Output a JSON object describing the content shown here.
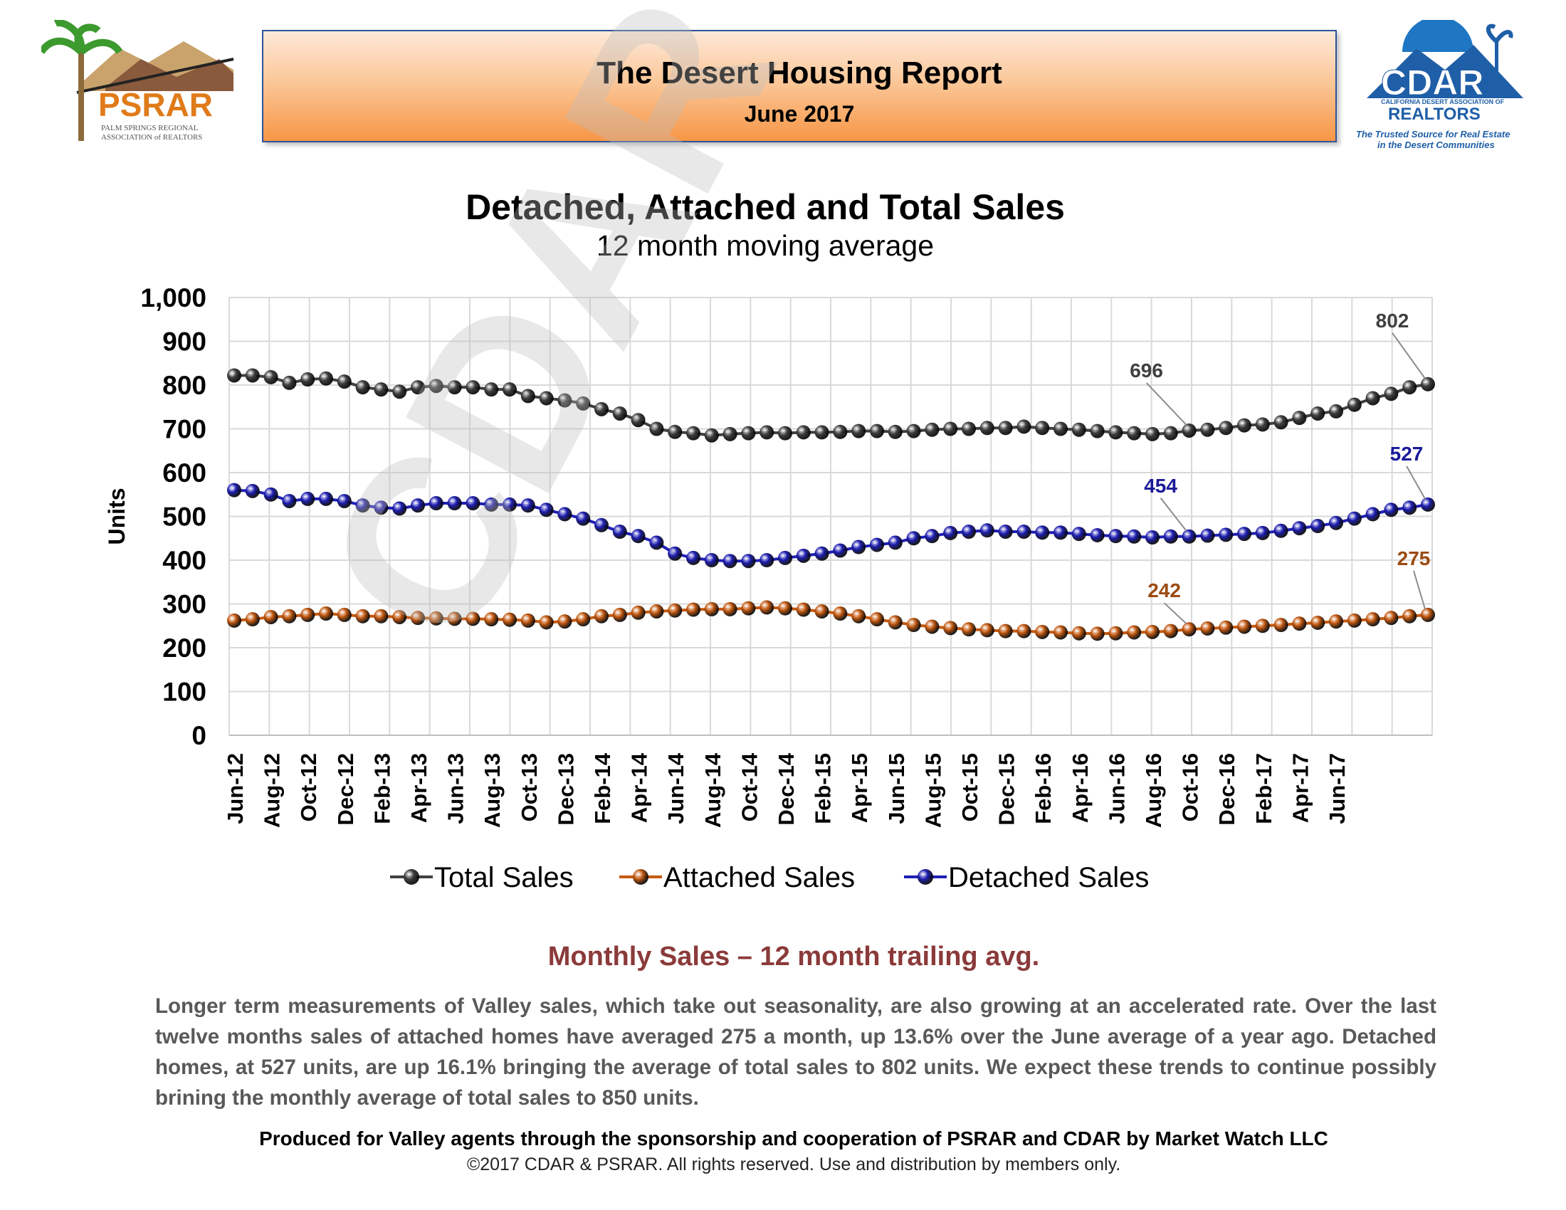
{
  "header": {
    "title": "The Desert Housing Report",
    "date": "June 2017"
  },
  "logos": {
    "left_text": "PSRAR",
    "left_subtitle_1": "PALM SPRINGS REGIONAL",
    "left_subtitle_2": "ASSOCIATION of REALTORS",
    "right_text": "CDAR",
    "right_assoc": "CALIFORNIA DESERT ASSOCIATION OF",
    "right_realtors": "REALTORS",
    "right_tagline_1": "The Trusted Source for Real Estate",
    "right_tagline_2": "in the Desert Communities"
  },
  "watermark": "CDAR & PSRAR",
  "colors": {
    "total": "#404040",
    "attached": "#c55a11",
    "detached": "#1f1fb4",
    "grid": "#d9d9d9",
    "section_title": "#8b3a3a"
  },
  "chart_data": {
    "type": "line",
    "title": "Detached, Attached and Total Sales",
    "subtitle": "12 month moving average",
    "ylabel": "Units",
    "xlabel": "",
    "ylim": [
      0,
      1000
    ],
    "yticks": [
      "0",
      "100",
      "200",
      "300",
      "400",
      "500",
      "600",
      "700",
      "800",
      "900",
      "1,000"
    ],
    "x_tick_labels": [
      "Jun-12",
      "Aug-12",
      "Oct-12",
      "Dec-12",
      "Feb-13",
      "Apr-13",
      "Jun-13",
      "Aug-13",
      "Oct-13",
      "Dec-13",
      "Feb-14",
      "Apr-14",
      "Jun-14",
      "Aug-14",
      "Oct-14",
      "Dec-14",
      "Feb-15",
      "Apr-15",
      "Jun-15",
      "Aug-15",
      "Oct-15",
      "Dec-15",
      "Feb-16",
      "Apr-16",
      "Jun-16",
      "Aug-16",
      "Oct-16",
      "Dec-16",
      "Feb-17",
      "Apr-17",
      "Jun-17"
    ],
    "legend": [
      "Total Sales",
      "Attached Sales",
      "Detached Sales"
    ],
    "series": [
      {
        "name": "Total Sales",
        "values": [
          822,
          822,
          818,
          805,
          813,
          815,
          808,
          795,
          790,
          785,
          795,
          798,
          795,
          795,
          790,
          790,
          775,
          770,
          765,
          758,
          745,
          735,
          720,
          700,
          693,
          690,
          685,
          688,
          690,
          692,
          690,
          692,
          692,
          693,
          695,
          695,
          693,
          695,
          698,
          700,
          700,
          702,
          702,
          705,
          702,
          700,
          698,
          695,
          692,
          690,
          688,
          690,
          696,
          698,
          702,
          708,
          710,
          715,
          725,
          735,
          740,
          755,
          770,
          780,
          795,
          802
        ]
      },
      {
        "name": "Attached Sales",
        "values": [
          262,
          265,
          270,
          272,
          275,
          278,
          275,
          272,
          272,
          270,
          268,
          267,
          266,
          266,
          265,
          264,
          262,
          258,
          260,
          265,
          272,
          275,
          280,
          283,
          285,
          287,
          288,
          288,
          290,
          292,
          290,
          287,
          283,
          278,
          272,
          265,
          258,
          252,
          248,
          245,
          242,
          240,
          238,
          238,
          236,
          235,
          233,
          232,
          233,
          235,
          236,
          238,
          242,
          244,
          246,
          248,
          250,
          252,
          255,
          257,
          260,
          262,
          265,
          268,
          272,
          275
        ]
      },
      {
        "name": "Detached Sales",
        "values": [
          560,
          558,
          550,
          535,
          540,
          540,
          535,
          525,
          520,
          518,
          525,
          530,
          530,
          530,
          527,
          527,
          525,
          515,
          505,
          495,
          480,
          465,
          455,
          440,
          415,
          405,
          400,
          398,
          398,
          400,
          405,
          410,
          415,
          422,
          430,
          435,
          440,
          450,
          455,
          462,
          465,
          468,
          465,
          465,
          463,
          463,
          460,
          457,
          455,
          454,
          452,
          454,
          454,
          456,
          458,
          460,
          462,
          467,
          473,
          478,
          485,
          495,
          505,
          515,
          520,
          527
        ]
      }
    ],
    "callouts": [
      {
        "series": "Total Sales",
        "label": "696"
      },
      {
        "series": "Total Sales",
        "label": "802"
      },
      {
        "series": "Detached Sales",
        "label": "454"
      },
      {
        "series": "Detached Sales",
        "label": "527"
      },
      {
        "series": "Attached Sales",
        "label": "242"
      },
      {
        "series": "Attached Sales",
        "label": "275"
      }
    ]
  },
  "section": {
    "title": "Monthly Sales – 12 month trailing avg."
  },
  "summary": "Longer term measurements of Valley sales, which take out seasonality, are also growing at an accelerated rate. Over the last twelve months sales of attached homes have averaged 275 a month, up 13.6% over the June average of a year ago. Detached homes, at 527 units, are up 16.1% bringing the average of total sales to 802 units.  We expect these trends to continue possibly brining the monthly average of total sales to 850 units.",
  "footer": {
    "credit": "Produced for Valley agents through the sponsorship and cooperation of PSRAR and CDAR by Market Watch LLC",
    "copyright": "©2017 CDAR & PSRAR.  All rights reserved.  Use and distribution by members only."
  }
}
